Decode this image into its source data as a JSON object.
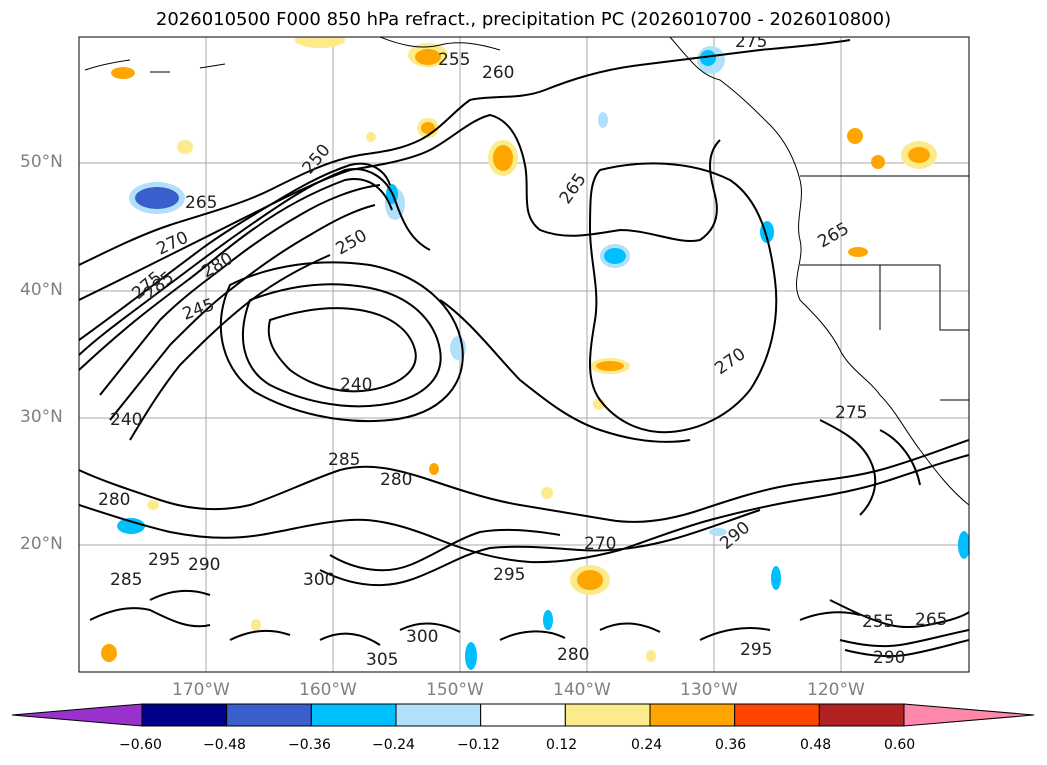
{
  "title": "2026010500 F000 850 hPa refract., precipitation PC (2026010700 - 2026010800)",
  "map": {
    "lat_ticks": [
      "50°N",
      "40°N",
      "30°N",
      "20°N"
    ],
    "lon_ticks": [
      "170°W",
      "160°W",
      "150°W",
      "140°W",
      "130°W",
      "120°W"
    ],
    "contour_labels": [
      "265",
      "270",
      "275",
      "280",
      "285",
      "245",
      "240",
      "250",
      "255",
      "260",
      "265",
      "275",
      "280",
      "285",
      "290",
      "295",
      "300",
      "305",
      "270",
      "275",
      "280",
      "290",
      "295",
      "285",
      "255",
      "265",
      "290",
      "295",
      "300",
      "280",
      "270",
      "265",
      "240",
      "250"
    ],
    "gridlines": true
  },
  "colorbar": {
    "ticks": [
      "−0.60",
      "−0.48",
      "−0.36",
      "−0.24",
      "−0.12",
      "0.12",
      "0.24",
      "0.36",
      "0.48",
      "0.60"
    ],
    "colors": [
      "#9932cc",
      "#00008b",
      "#3a5fcd",
      "#00bfff",
      "#b0e0fa",
      "#ffffff",
      "#fceb8c",
      "#ffa500",
      "#ff4500",
      "#b22222",
      "#ff88aa"
    ]
  }
}
